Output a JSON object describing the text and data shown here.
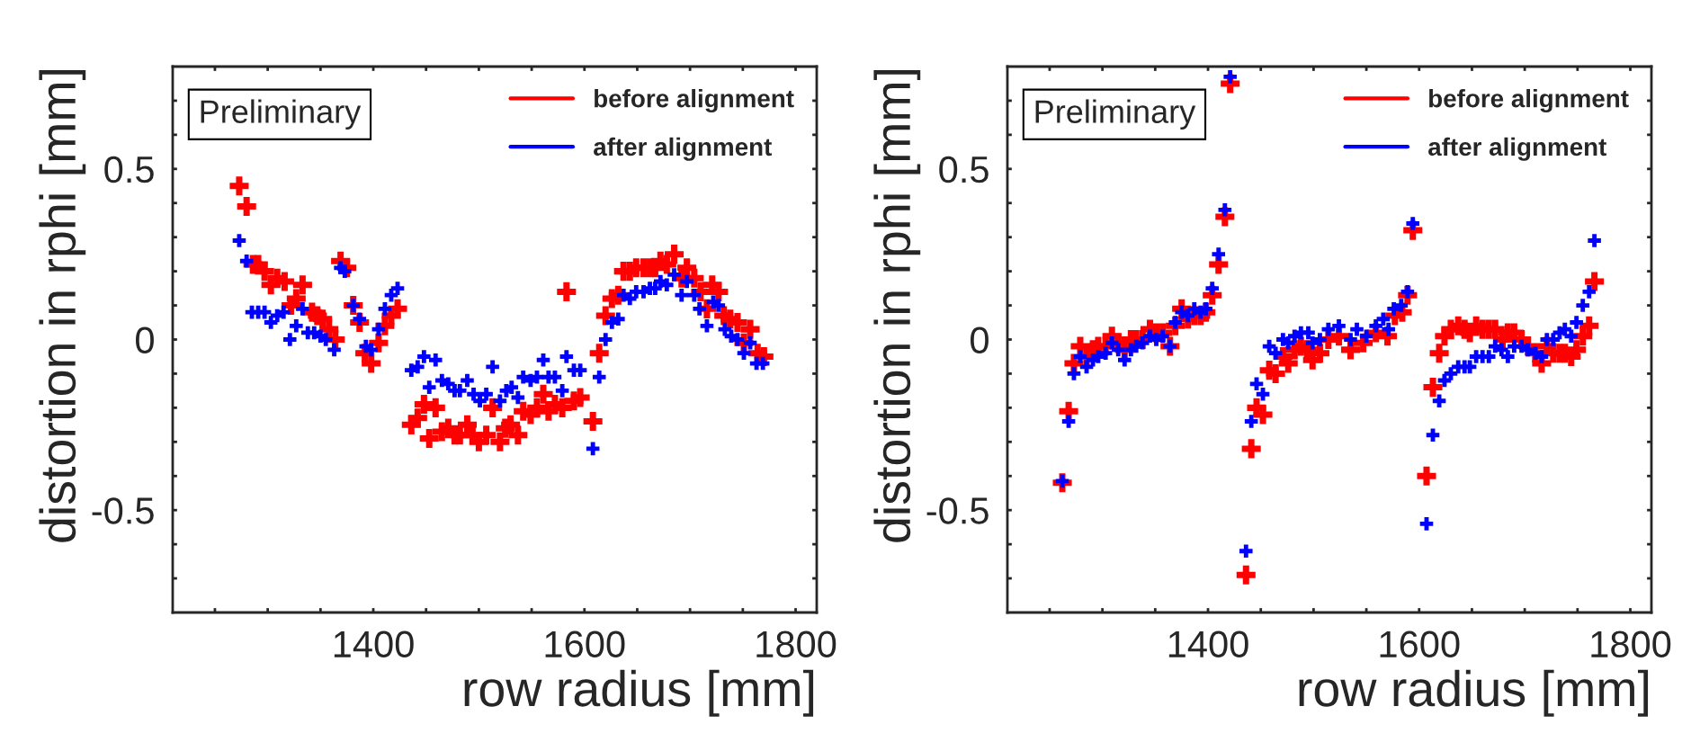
{
  "chart_data": [
    {
      "type": "scatter",
      "xlabel": "row radius [mm]",
      "ylabel": "distortion in rphi [mm]",
      "annotations": [
        "Preliminary"
      ],
      "legend": "top right",
      "marker": "cross",
      "grid": false,
      "xlim": [
        1210,
        1820
      ],
      "xticks": [
        {
          "value": 1250,
          "label": null
        },
        {
          "value": 1300,
          "label": null
        },
        {
          "value": 1350,
          "label": null
        },
        1400,
        {
          "value": 1450,
          "label": null
        },
        {
          "value": 1500,
          "label": null
        },
        {
          "value": 1550,
          "label": null
        },
        1600,
        {
          "value": 1650,
          "label": null
        },
        {
          "value": 1700,
          "label": null
        },
        {
          "value": 1750,
          "label": null
        },
        1800
      ],
      "ylim": [
        -0.8,
        0.8
      ],
      "yticks": [
        {
          "value": -0.7,
          "label": null
        },
        {
          "value": -0.6,
          "label": null
        },
        -0.5,
        {
          "value": -0.4,
          "label": null
        },
        {
          "value": -0.3,
          "label": null
        },
        {
          "value": -0.2,
          "label": null
        },
        {
          "value": -0.1,
          "label": null
        },
        0,
        {
          "value": 0.1,
          "label": null
        },
        {
          "value": 0.2,
          "label": null
        },
        {
          "value": 0.3,
          "label": null
        },
        {
          "value": 0.4,
          "label": null
        },
        0.5,
        {
          "value": 0.6,
          "label": null
        },
        {
          "value": 0.7,
          "label": null
        }
      ],
      "series": [
        {
          "name": "before alignment",
          "color": "#ff0000",
          "x": [
            1273,
            1280,
            1286,
            1291,
            1297,
            1303,
            1309,
            1316,
            1322,
            1327,
            1333,
            1342,
            1347,
            1352,
            1358,
            1364,
            1369,
            1375,
            1381,
            1387,
            1392,
            1398,
            1405,
            1411,
            1417,
            1423,
            1436,
            1442,
            1448,
            1453,
            1459,
            1465,
            1471,
            1477,
            1482,
            1489,
            1494,
            1500,
            1507,
            1513,
            1520,
            1525,
            1530,
            1537,
            1542,
            1549,
            1555,
            1561,
            1566,
            1572,
            1579,
            1583,
            1590,
            1596,
            1608,
            1614,
            1620,
            1626,
            1632,
            1637,
            1643,
            1649,
            1656,
            1662,
            1667,
            1672,
            1678,
            1685,
            1692,
            1697,
            1704,
            1710,
            1716,
            1721,
            1727,
            1732,
            1738,
            1745,
            1751,
            1757,
            1764,
            1770
          ],
          "values": [
            0.45,
            0.39,
            0.22,
            0.22,
            0.2,
            0.16,
            0.18,
            0.17,
            0.1,
            0.12,
            0.16,
            0.08,
            0.07,
            0.06,
            0.03,
            0.0,
            0.23,
            0.21,
            0.1,
            0.05,
            -0.04,
            -0.07,
            -0.01,
            0.04,
            0.07,
            0.09,
            -0.25,
            -0.23,
            -0.19,
            -0.29,
            -0.2,
            -0.27,
            -0.26,
            -0.28,
            -0.28,
            -0.25,
            -0.28,
            -0.3,
            -0.28,
            -0.2,
            -0.3,
            -0.26,
            -0.25,
            -0.28,
            -0.21,
            -0.22,
            -0.2,
            -0.16,
            -0.21,
            -0.19,
            -0.2,
            0.14,
            -0.18,
            -0.17,
            -0.24,
            -0.04,
            0.07,
            0.12,
            0.13,
            0.2,
            0.2,
            0.21,
            0.21,
            0.21,
            0.21,
            0.23,
            0.22,
            0.25,
            0.18,
            0.21,
            0.18,
            0.14,
            0.09,
            0.16,
            0.14,
            0.07,
            0.06,
            0.05,
            -0.01,
            0.03,
            -0.04,
            -0.05
          ]
        },
        {
          "name": "after alignment",
          "color": "#0000ff",
          "x": [
            1273,
            1280,
            1285,
            1291,
            1297,
            1303,
            1309,
            1315,
            1321,
            1327,
            1333,
            1338,
            1344,
            1350,
            1355,
            1363,
            1369,
            1373,
            1381,
            1387,
            1393,
            1398,
            1405,
            1411,
            1417,
            1423,
            1436,
            1442,
            1448,
            1453,
            1459,
            1465,
            1471,
            1477,
            1482,
            1489,
            1495,
            1501,
            1507,
            1513,
            1520,
            1526,
            1531,
            1537,
            1542,
            1549,
            1555,
            1561,
            1566,
            1572,
            1579,
            1583,
            1590,
            1596,
            1608,
            1614,
            1620,
            1626,
            1632,
            1637,
            1643,
            1649,
            1656,
            1662,
            1667,
            1672,
            1678,
            1685,
            1692,
            1697,
            1704,
            1709,
            1716,
            1722,
            1727,
            1733,
            1739,
            1745,
            1751,
            1757,
            1763,
            1769
          ],
          "values": [
            0.29,
            0.23,
            0.08,
            0.08,
            0.08,
            0.05,
            0.07,
            0.08,
            0.0,
            0.04,
            0.09,
            0.02,
            0.02,
            0.01,
            0.0,
            -0.03,
            0.21,
            0.2,
            0.1,
            0.06,
            -0.02,
            -0.03,
            0.03,
            0.09,
            0.13,
            0.15,
            -0.09,
            -0.08,
            -0.05,
            -0.14,
            -0.06,
            -0.12,
            -0.13,
            -0.15,
            -0.15,
            -0.12,
            -0.16,
            -0.18,
            -0.16,
            -0.08,
            -0.18,
            -0.15,
            -0.14,
            -0.17,
            -0.11,
            -0.12,
            -0.11,
            -0.06,
            -0.11,
            -0.11,
            -0.15,
            -0.05,
            -0.09,
            -0.09,
            -0.32,
            -0.11,
            0.0,
            0.05,
            0.06,
            0.13,
            0.12,
            0.14,
            0.14,
            0.15,
            0.15,
            0.17,
            0.16,
            0.19,
            0.13,
            0.17,
            0.13,
            0.09,
            0.04,
            0.11,
            0.1,
            0.03,
            0.01,
            0.0,
            -0.04,
            -0.01,
            -0.07,
            -0.07
          ]
        }
      ]
    },
    {
      "type": "scatter",
      "xlabel": "row radius [mm]",
      "ylabel": "distortion in rphi [mm]",
      "annotations": [
        "Preliminary"
      ],
      "legend": "top right",
      "marker": "cross",
      "grid": false,
      "xlim": [
        1210,
        1820
      ],
      "xticks": [
        {
          "value": 1250,
          "label": null
        },
        {
          "value": 1300,
          "label": null
        },
        {
          "value": 1350,
          "label": null
        },
        1400,
        {
          "value": 1450,
          "label": null
        },
        {
          "value": 1500,
          "label": null
        },
        {
          "value": 1550,
          "label": null
        },
        1600,
        {
          "value": 1650,
          "label": null
        },
        {
          "value": 1700,
          "label": null
        },
        {
          "value": 1750,
          "label": null
        },
        1800
      ],
      "ylim": [
        -0.8,
        0.8
      ],
      "yticks": [
        {
          "value": -0.7,
          "label": null
        },
        {
          "value": -0.6,
          "label": null
        },
        -0.5,
        {
          "value": -0.4,
          "label": null
        },
        {
          "value": -0.3,
          "label": null
        },
        {
          "value": -0.2,
          "label": null
        },
        {
          "value": -0.1,
          "label": null
        },
        0,
        {
          "value": 0.1,
          "label": null
        },
        {
          "value": 0.2,
          "label": null
        },
        {
          "value": 0.3,
          "label": null
        },
        {
          "value": 0.4,
          "label": null
        },
        0.5,
        {
          "value": 0.6,
          "label": null
        },
        {
          "value": 0.7,
          "label": null
        }
      ],
      "series": [
        {
          "name": "before alignment",
          "color": "#ff0000",
          "x": [
            1262,
            1268,
            1273,
            1279,
            1285,
            1291,
            1296,
            1303,
            1309,
            1315,
            1321,
            1327,
            1332,
            1338,
            1345,
            1351,
            1357,
            1364,
            1369,
            1375,
            1381,
            1387,
            1393,
            1398,
            1404,
            1410,
            1416,
            1421,
            1436,
            1441,
            1446,
            1452,
            1458,
            1464,
            1471,
            1476,
            1482,
            1488,
            1494,
            1499,
            1506,
            1514,
            1524,
            1535,
            1547,
            1559,
            1570,
            1577,
            1584,
            1589,
            1594,
            1607,
            1613,
            1619,
            1624,
            1630,
            1637,
            1643,
            1648,
            1654,
            1660,
            1666,
            1672,
            1679,
            1684,
            1690,
            1697,
            1703,
            1710,
            1716,
            1721,
            1727,
            1733,
            1738,
            1744,
            1749,
            1755,
            1761,
            1766
          ],
          "values": [
            -0.42,
            -0.21,
            -0.07,
            -0.02,
            -0.05,
            -0.03,
            -0.02,
            -0.02,
            0.01,
            -0.01,
            -0.03,
            0.0,
            0.0,
            0.0,
            0.03,
            0.02,
            0.02,
            -0.02,
            0.04,
            0.09,
            0.06,
            0.07,
            0.07,
            0.08,
            0.13,
            0.22,
            0.36,
            0.75,
            -0.69,
            -0.32,
            -0.2,
            -0.22,
            -0.09,
            -0.1,
            -0.05,
            -0.07,
            -0.03,
            -0.02,
            -0.03,
            -0.06,
            -0.04,
            0.0,
            0.01,
            -0.03,
            -0.01,
            0.02,
            0.01,
            0.07,
            0.08,
            0.13,
            0.32,
            -0.4,
            -0.14,
            -0.04,
            0.01,
            0.03,
            0.04,
            0.03,
            0.02,
            0.04,
            0.03,
            0.03,
            0.03,
            0.0,
            0.02,
            0.02,
            0.0,
            -0.02,
            -0.04,
            -0.07,
            -0.02,
            -0.04,
            -0.04,
            -0.04,
            -0.05,
            -0.03,
            0.01,
            0.04,
            0.17
          ]
        },
        {
          "name": "after alignment",
          "color": "#0000ff",
          "x": [
            1262,
            1268,
            1273,
            1279,
            1285,
            1291,
            1296,
            1303,
            1309,
            1315,
            1321,
            1327,
            1332,
            1338,
            1345,
            1351,
            1357,
            1364,
            1369,
            1375,
            1381,
            1387,
            1393,
            1398,
            1404,
            1410,
            1416,
            1421,
            1436,
            1441,
            1446,
            1452,
            1458,
            1464,
            1471,
            1476,
            1482,
            1488,
            1495,
            1499,
            1506,
            1514,
            1524,
            1535,
            1541,
            1550,
            1559,
            1566,
            1571,
            1576,
            1583,
            1589,
            1594,
            1607,
            1613,
            1619,
            1624,
            1630,
            1637,
            1643,
            1648,
            1654,
            1660,
            1666,
            1672,
            1678,
            1684,
            1690,
            1697,
            1703,
            1710,
            1716,
            1721,
            1727,
            1733,
            1738,
            1744,
            1749,
            1755,
            1761,
            1766
          ],
          "values": [
            -0.415,
            -0.24,
            -0.1,
            -0.05,
            -0.08,
            -0.06,
            -0.05,
            -0.04,
            -0.01,
            -0.03,
            -0.06,
            -0.03,
            -0.02,
            -0.01,
            0.01,
            0.0,
            0.01,
            -0.02,
            0.05,
            0.08,
            0.07,
            0.09,
            0.08,
            0.09,
            0.15,
            0.25,
            0.38,
            0.77,
            -0.62,
            -0.24,
            -0.13,
            -0.16,
            -0.02,
            -0.04,
            0.0,
            -0.01,
            0.01,
            0.02,
            0.02,
            -0.01,
            0.0,
            0.03,
            0.04,
            0.0,
            0.03,
            0.01,
            0.04,
            0.06,
            0.03,
            0.09,
            0.1,
            0.14,
            0.34,
            -0.54,
            -0.28,
            -0.18,
            -0.12,
            -0.1,
            -0.08,
            -0.08,
            -0.08,
            -0.05,
            -0.05,
            -0.05,
            -0.02,
            -0.03,
            -0.05,
            -0.02,
            -0.02,
            -0.03,
            -0.04,
            -0.05,
            0.0,
            0.0,
            0.02,
            0.03,
            0.01,
            0.05,
            0.1,
            0.14,
            0.29
          ]
        }
      ]
    }
  ]
}
